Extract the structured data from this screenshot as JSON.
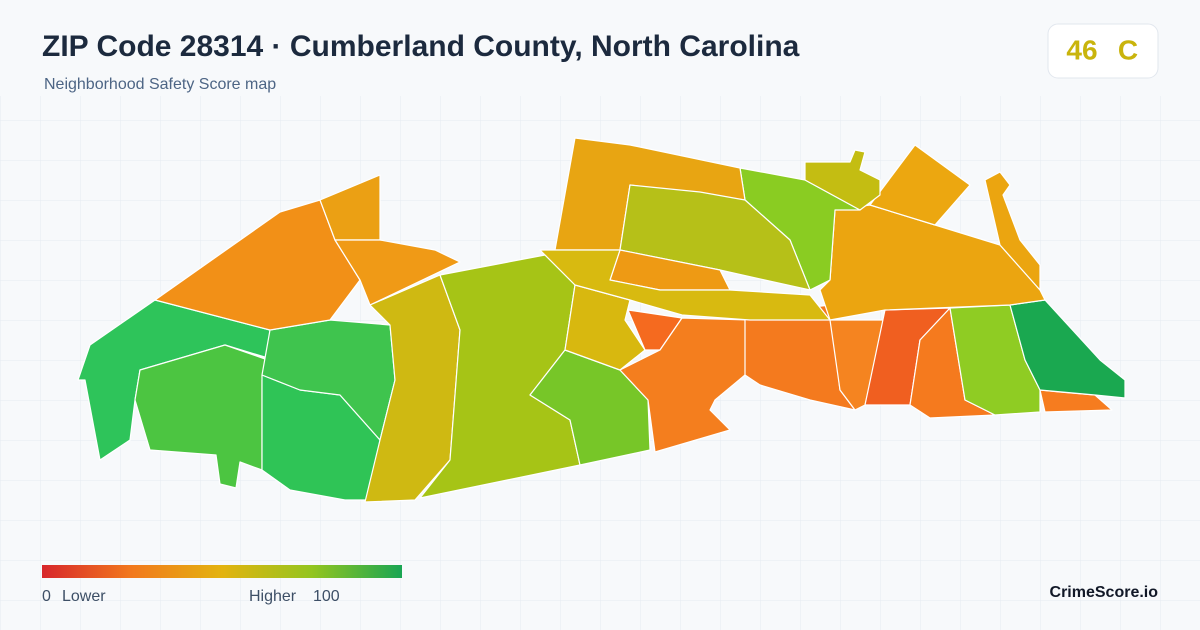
{
  "header": {
    "title": "ZIP Code 28314 · Cumberland County, North Carolina",
    "subtitle": "Neighborhood Safety Score map"
  },
  "score": {
    "value": 46,
    "grade": "C"
  },
  "legend": {
    "min": 0,
    "min_label": "Lower",
    "max_label": "Higher",
    "max": 100
  },
  "brand": "CrimeScore.io"
}
